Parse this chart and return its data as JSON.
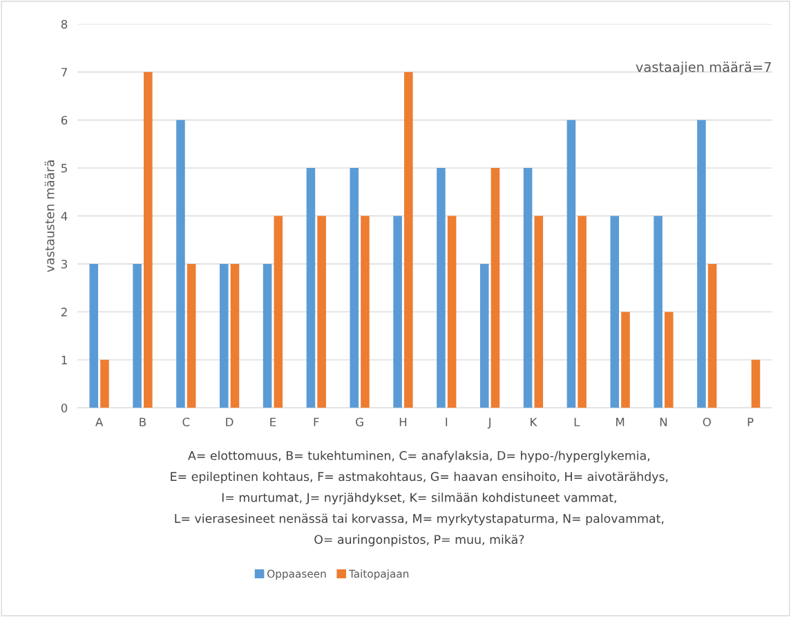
{
  "chart_data": {
    "type": "bar",
    "ylabel": "vastausten määrä",
    "categories": [
      "A",
      "B",
      "C",
      "D",
      "E",
      "F",
      "G",
      "H",
      "I",
      "J",
      "K",
      "L",
      "M",
      "N",
      "O",
      "P"
    ],
    "series": [
      {
        "name": "Oppaaseen",
        "color": "#5b9bd5",
        "values": [
          3,
          3,
          6,
          3,
          3,
          5,
          5,
          4,
          5,
          3,
          5,
          6,
          4,
          4,
          6,
          0
        ]
      },
      {
        "name": "Taitopajaan",
        "color": "#ed7d31",
        "values": [
          1,
          7,
          3,
          3,
          4,
          4,
          4,
          7,
          4,
          5,
          4,
          4,
          2,
          2,
          3,
          1
        ]
      }
    ],
    "ylim": [
      0,
      8
    ],
    "yticks": [
      0,
      1,
      2,
      3,
      4,
      5,
      6,
      7,
      8
    ],
    "grid": "y",
    "legend": "bottom",
    "annotations": [
      "vastaajien määrä=7",
      "A= elottomuus, B= tukehtuminen, C= anafylaksia, D= hypo-/hyperglykemia,",
      "E= epileptinen kohtaus, F= astmakohtaus, G= haavan ensihoito, H= aivotärähdys,",
      "I= murtumat, J= nyrjähdykset, K= silmään kohdistuneet vammat,",
      "L= vierasesineet nenässä tai korvassa, M= myrkytystapaturma, N= palovammat,",
      "O= auringonpistos, P= muu, mikä?"
    ]
  }
}
